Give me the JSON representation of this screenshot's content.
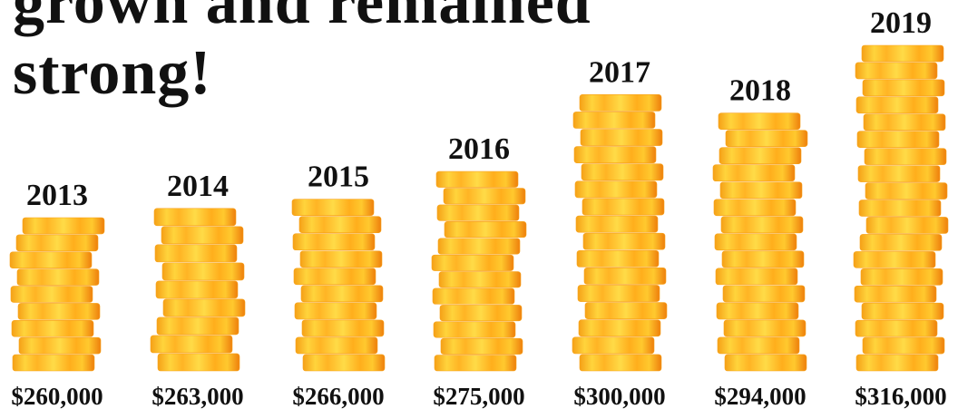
{
  "chart_data": {
    "type": "coin-stack",
    "title": "grown and remained strong!",
    "categories": [
      "2013",
      "2014",
      "2015",
      "2016",
      "2017",
      "2018",
      "2019"
    ],
    "values": [
      260000,
      263000,
      266000,
      275000,
      300000,
      294000,
      316000
    ],
    "value_labels": [
      "$260,000",
      "$263,000",
      "$266,000",
      "$275,000",
      "$300,000",
      "$294,000",
      "$316,000"
    ],
    "color": "#f7a21b"
  }
}
